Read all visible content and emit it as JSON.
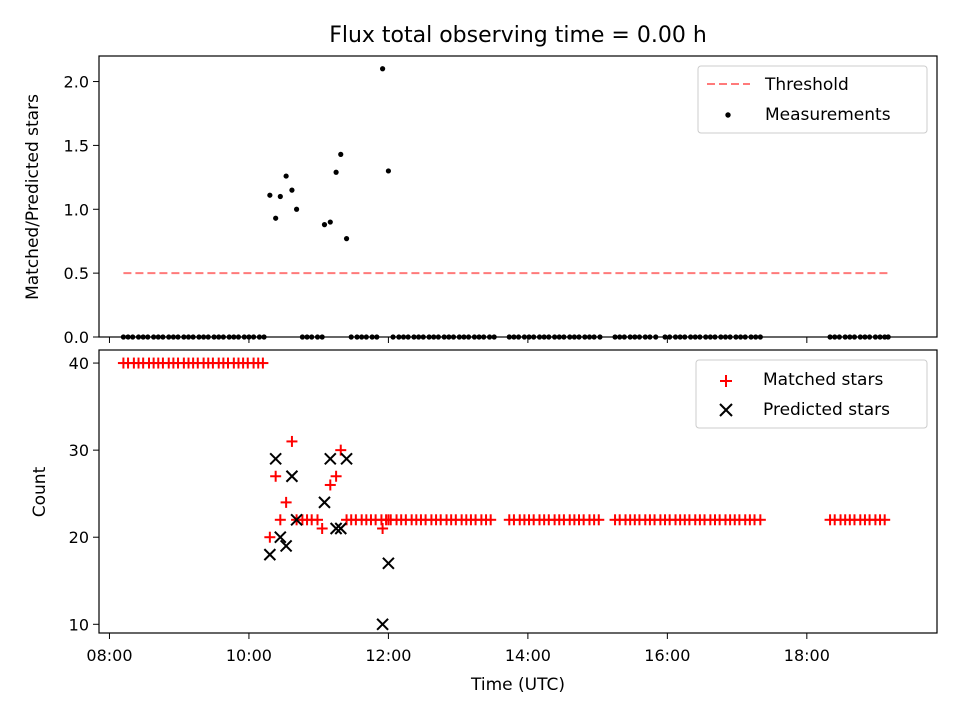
{
  "chart_data": [
    {
      "type": "scatter",
      "title": "Flux total observing time = 0.00 h",
      "xlabel": "",
      "ylabel": "Matched/Predicted stars",
      "ylim": [
        0,
        2.2
      ],
      "yticks": [
        "0.0",
        "0.5",
        "1.0",
        "1.5",
        "2.0"
      ],
      "legend_position": "top-right",
      "threshold": {
        "name": "Threshold",
        "y": 0.5,
        "x_range": [
          "08:12",
          "19:10"
        ],
        "color": "#ff7a7a"
      },
      "series": [
        {
          "name": "Measurements",
          "color": "#000000",
          "points": [
            [
              "10:18",
              1.11
            ],
            [
              "10:23",
              0.93
            ],
            [
              "10:27",
              1.1
            ],
            [
              "10:32",
              1.26
            ],
            [
              "10:37",
              1.15
            ],
            [
              "10:41",
              1.0
            ],
            [
              "11:05",
              0.88
            ],
            [
              "11:10",
              0.9
            ],
            [
              "11:15",
              1.29
            ],
            [
              "11:19",
              1.43
            ],
            [
              "11:24",
              0.77
            ],
            [
              "11:55",
              2.1
            ],
            [
              "12:00",
              1.3
            ]
          ],
          "zero_points": [
            "08:12",
            "08:16",
            "08:20",
            "08:25",
            "08:29",
            "08:33",
            "08:38",
            "08:42",
            "08:46",
            "08:51",
            "08:55",
            "08:59",
            "09:04",
            "09:08",
            "09:12",
            "09:17",
            "09:21",
            "09:25",
            "09:30",
            "09:34",
            "09:38",
            "09:43",
            "09:47",
            "09:51",
            "09:56",
            "10:00",
            "10:04",
            "10:09",
            "10:13",
            "10:46",
            "10:50",
            "10:54",
            "10:59",
            "11:03",
            "11:28",
            "11:33",
            "11:37",
            "11:41",
            "11:46",
            "11:50",
            "12:04",
            "12:09",
            "12:13",
            "12:17",
            "12:22",
            "12:26",
            "12:30",
            "12:35",
            "12:39",
            "12:43",
            "12:48",
            "12:52",
            "12:56",
            "13:01",
            "13:05",
            "13:09",
            "13:14",
            "13:18",
            "13:22",
            "13:27",
            "13:31",
            "13:44",
            "13:48",
            "13:52",
            "13:57",
            "14:01",
            "14:05",
            "14:10",
            "14:14",
            "14:18",
            "14:23",
            "14:27",
            "14:31",
            "14:36",
            "14:40",
            "14:44",
            "14:49",
            "14:53",
            "14:57",
            "15:02",
            "15:15",
            "15:19",
            "15:23",
            "15:28",
            "15:32",
            "15:36",
            "15:41",
            "15:45",
            "15:50",
            "15:58",
            "16:02",
            "16:07",
            "16:11",
            "16:15",
            "16:20",
            "16:24",
            "16:28",
            "16:33",
            "16:37",
            "16:41",
            "16:46",
            "16:50",
            "16:54",
            "16:59",
            "17:03",
            "17:07",
            "17:12",
            "17:16",
            "17:20",
            "18:20",
            "18:24",
            "18:28",
            "18:33",
            "18:37",
            "18:41",
            "18:46",
            "18:50",
            "18:54",
            "18:59",
            "19:03",
            "19:07",
            "19:10"
          ]
        }
      ]
    },
    {
      "type": "scatter",
      "title": "",
      "xlabel": "Time (UTC)",
      "ylabel": "Count",
      "ylim": [
        9,
        41.5
      ],
      "xlim": [
        "07:51",
        "19:52"
      ],
      "xticks": [
        "08:00",
        "10:00",
        "12:00",
        "14:00",
        "16:00",
        "18:00"
      ],
      "yticks": [
        "10",
        "20",
        "30",
        "40"
      ],
      "legend_position": "top-right",
      "series": [
        {
          "name": "Matched stars",
          "marker": "plus",
          "color": "#ff0000",
          "constant_runs": [
            {
              "y": 40,
              "from": "08:12",
              "to": "10:13",
              "step_min": 4.3
            },
            {
              "y": 22,
              "from": "11:28",
              "to": "13:31",
              "step_min": 4.3
            },
            {
              "y": 22,
              "from": "13:44",
              "to": "15:02",
              "step_min": 4.3
            },
            {
              "y": 22,
              "from": "15:15",
              "to": "17:20",
              "step_min": 4.3
            },
            {
              "y": 22,
              "from": "18:20",
              "to": "19:10",
              "step_min": 4.3
            }
          ],
          "points": [
            [
              "10:18",
              20
            ],
            [
              "10:23",
              27
            ],
            [
              "10:27",
              22
            ],
            [
              "10:32",
              24
            ],
            [
              "10:37",
              31
            ],
            [
              "10:41",
              22
            ],
            [
              "10:46",
              22
            ],
            [
              "10:50",
              22
            ],
            [
              "10:54",
              22
            ],
            [
              "10:59",
              22
            ],
            [
              "11:03",
              21
            ],
            [
              "11:10",
              26
            ],
            [
              "11:15",
              27
            ],
            [
              "11:19",
              30
            ],
            [
              "11:24",
              22
            ],
            [
              "11:55",
              21
            ],
            [
              "12:00",
              22
            ]
          ]
        },
        {
          "name": "Predicted stars",
          "marker": "x",
          "color": "#000000",
          "points": [
            [
              "10:18",
              18
            ],
            [
              "10:23",
              29
            ],
            [
              "10:27",
              20
            ],
            [
              "10:32",
              19
            ],
            [
              "10:37",
              27
            ],
            [
              "10:41",
              22
            ],
            [
              "11:05",
              24
            ],
            [
              "11:10",
              29
            ],
            [
              "11:15",
              21
            ],
            [
              "11:19",
              21
            ],
            [
              "11:24",
              29
            ],
            [
              "11:55",
              10
            ],
            [
              "12:00",
              17
            ]
          ]
        }
      ]
    }
  ]
}
